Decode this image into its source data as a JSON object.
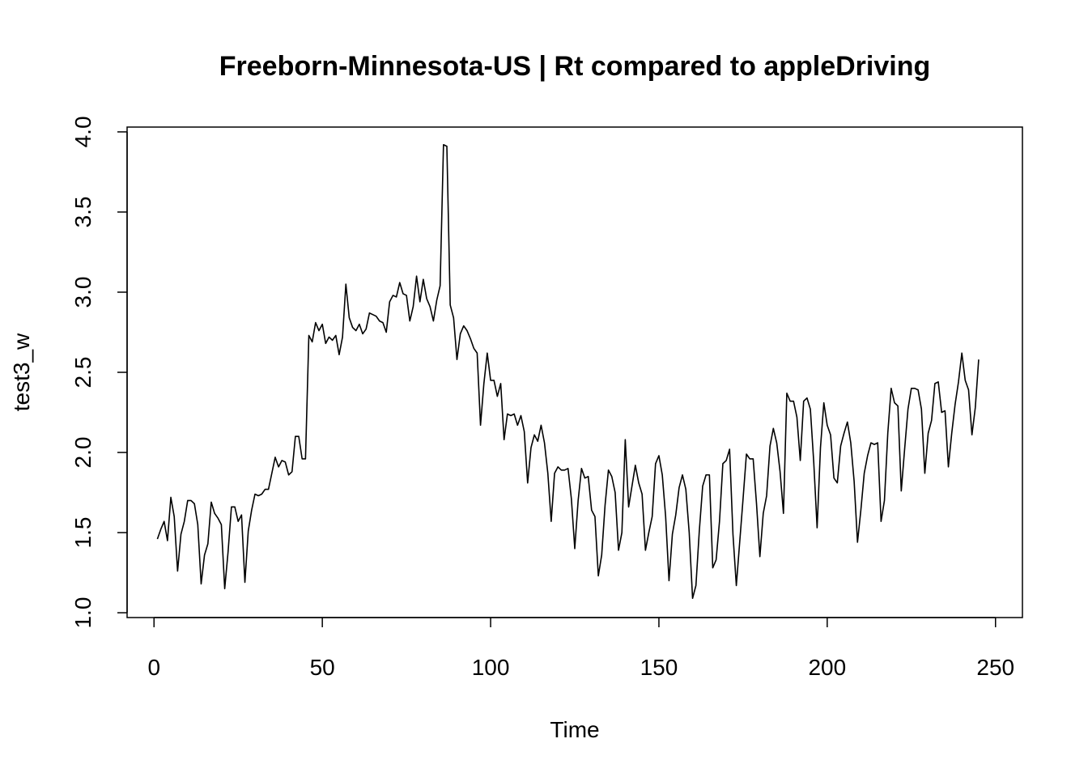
{
  "chart_data": {
    "type": "line",
    "title": "Freeborn-Minnesota-US | Rt compared to appleDriving",
    "xlabel": "Time",
    "ylabel": "test3_w",
    "xlim": [
      -8,
      258
    ],
    "ylim": [
      0.97,
      4.03
    ],
    "x_ticks": [
      0,
      50,
      100,
      150,
      200,
      250
    ],
    "x_tick_labels": [
      "0",
      "50",
      "100",
      "150",
      "200",
      "250"
    ],
    "y_ticks": [
      1.0,
      1.5,
      2.0,
      2.5,
      3.0,
      3.5,
      4.0
    ],
    "y_tick_labels": [
      "1.0",
      "1.5",
      "2.0",
      "2.5",
      "3.0",
      "3.5",
      "4.0"
    ],
    "grid": false,
    "series": [
      {
        "x_start": 1,
        "x_step": 1,
        "values": [
          1.46,
          1.52,
          1.57,
          1.45,
          1.72,
          1.6,
          1.26,
          1.49,
          1.57,
          1.7,
          1.7,
          1.68,
          1.55,
          1.18,
          1.36,
          1.43,
          1.69,
          1.62,
          1.59,
          1.55,
          1.15,
          1.38,
          1.66,
          1.66,
          1.57,
          1.61,
          1.19,
          1.51,
          1.64,
          1.74,
          1.73,
          1.74,
          1.77,
          1.77,
          1.87,
          1.97,
          1.91,
          1.95,
          1.94,
          1.86,
          1.88,
          2.1,
          2.1,
          1.96,
          1.96,
          2.73,
          2.69,
          2.81,
          2.76,
          2.8,
          2.68,
          2.72,
          2.7,
          2.73,
          2.61,
          2.72,
          3.05,
          2.84,
          2.78,
          2.76,
          2.8,
          2.74,
          2.77,
          2.87,
          2.86,
          2.85,
          2.82,
          2.81,
          2.75,
          2.94,
          2.98,
          2.97,
          3.06,
          2.99,
          2.98,
          2.82,
          2.91,
          3.1,
          2.94,
          3.08,
          2.96,
          2.91,
          2.82,
          2.95,
          3.04,
          3.92,
          3.91,
          2.92,
          2.84,
          2.58,
          2.74,
          2.79,
          2.76,
          2.71,
          2.65,
          2.62,
          2.17,
          2.43,
          2.62,
          2.45,
          2.45,
          2.35,
          2.43,
          2.08,
          2.24,
          2.23,
          2.24,
          2.17,
          2.23,
          2.13,
          1.81,
          2.03,
          2.11,
          2.07,
          2.17,
          2.06,
          1.87,
          1.57,
          1.87,
          1.91,
          1.89,
          1.89,
          1.9,
          1.71,
          1.4,
          1.7,
          1.9,
          1.84,
          1.85,
          1.64,
          1.6,
          1.23,
          1.36,
          1.67,
          1.89,
          1.85,
          1.75,
          1.39,
          1.5,
          2.08,
          1.66,
          1.79,
          1.92,
          1.81,
          1.74,
          1.39,
          1.5,
          1.6,
          1.93,
          1.98,
          1.86,
          1.6,
          1.2,
          1.49,
          1.61,
          1.78,
          1.86,
          1.77,
          1.5,
          1.09,
          1.17,
          1.51,
          1.79,
          1.86,
          1.86,
          1.28,
          1.33,
          1.57,
          1.93,
          1.95,
          2.02,
          1.49,
          1.17,
          1.44,
          1.71,
          1.99,
          1.96,
          1.96,
          1.68,
          1.35,
          1.62,
          1.73,
          2.04,
          2.15,
          2.06,
          1.88,
          1.62,
          2.37,
          2.32,
          2.32,
          2.22,
          1.95,
          2.32,
          2.34,
          2.27,
          1.94,
          1.53,
          2.03,
          2.31,
          2.17,
          2.11,
          1.84,
          1.81,
          2.04,
          2.12,
          2.19,
          2.06,
          1.82,
          1.44,
          1.64,
          1.87,
          1.98,
          2.06,
          2.05,
          2.06,
          1.57,
          1.7,
          2.12,
          2.4,
          2.31,
          2.29,
          1.76,
          2.02,
          2.27,
          2.4,
          2.4,
          2.39,
          2.27,
          1.87,
          2.12,
          2.2,
          2.43,
          2.44,
          2.25,
          2.26,
          1.91,
          2.12,
          2.3,
          2.44,
          2.62,
          2.45,
          2.39,
          2.11,
          2.28,
          2.58
        ]
      }
    ]
  }
}
